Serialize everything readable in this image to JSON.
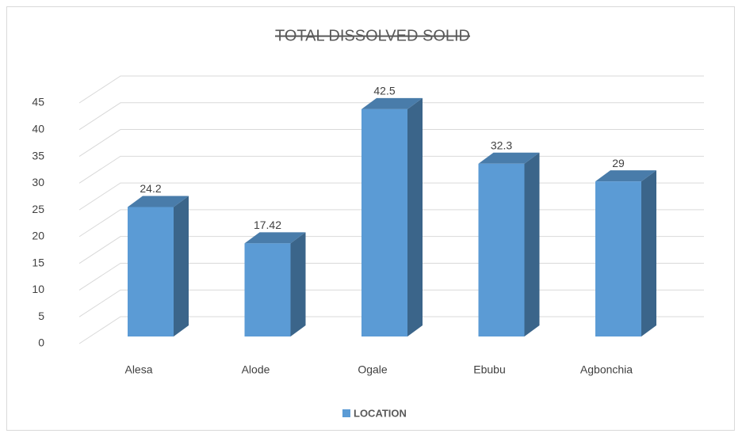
{
  "chart_data": {
    "type": "bar3d",
    "title": "TOTAL DISSOLVED SOLID",
    "categories": [
      "Alesa",
      "Alode",
      "Ogale",
      "Ebubu",
      "Agbonchia"
    ],
    "series": [
      {
        "name": "LOCATION",
        "color": "#5b9bd5",
        "values": [
          24.2,
          17.42,
          42.5,
          32.3,
          29
        ]
      }
    ],
    "ylim": [
      0,
      45
    ],
    "yticks": [
      0,
      5,
      10,
      15,
      20,
      25,
      30,
      35,
      40,
      45
    ],
    "grid": true,
    "legend": "bottom"
  }
}
